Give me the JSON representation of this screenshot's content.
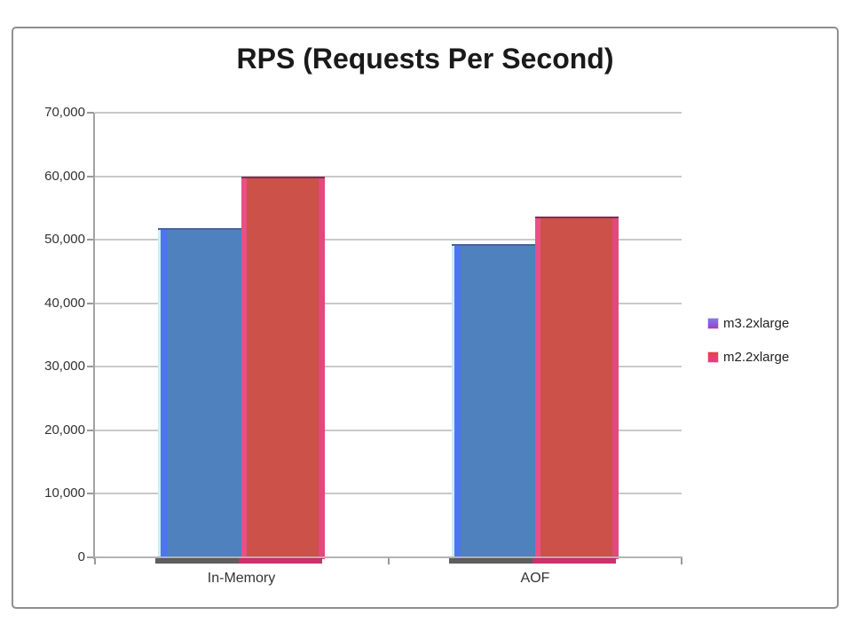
{
  "chart_data": {
    "type": "bar",
    "title": "RPS (Requests Per Second)",
    "categories": [
      "In-Memory",
      "AOF"
    ],
    "series": [
      {
        "name": "m3.2xlarge",
        "values": [
          51900,
          49300
        ],
        "fill": "#4e81bd",
        "edge_left_outer": "#cdeff0",
        "edge_left": "#4d75ef",
        "edge_top": "#44688f",
        "shadow": "#4d4d4d",
        "legend_marker": {
          "top": "#7b7bef",
          "bottom": "#9a41c9"
        }
      },
      {
        "name": "m2.2xlarge",
        "values": [
          59900,
          53600
        ],
        "fill": "#cb5149",
        "edge_left": "#ea4f86",
        "edge_right": "#e2497c",
        "edge_top": "#7d3150",
        "shadow": "#c21e5c",
        "legend_marker": {
          "top": "#e04545",
          "bottom": "#ee3a8c"
        }
      }
    ],
    "ylim": [
      0,
      70000
    ],
    "ytick_step": 10000,
    "yticks": [
      0,
      10000,
      20000,
      30000,
      40000,
      50000,
      60000,
      70000
    ],
    "ytick_labels": [
      "0",
      "10,000",
      "20,000",
      "30,000",
      "40,000",
      "50,000",
      "60,000",
      "70,000"
    ],
    "xlabel": "",
    "ylabel": "",
    "grid": true,
    "legend_position": "right",
    "colors": {
      "gridline": "#c9c9c9",
      "axis": "#a3a3a3",
      "text": "#333333",
      "title": "#1a1a1a",
      "frame_border": "#8f8f8f",
      "background": "#ffffff"
    }
  }
}
